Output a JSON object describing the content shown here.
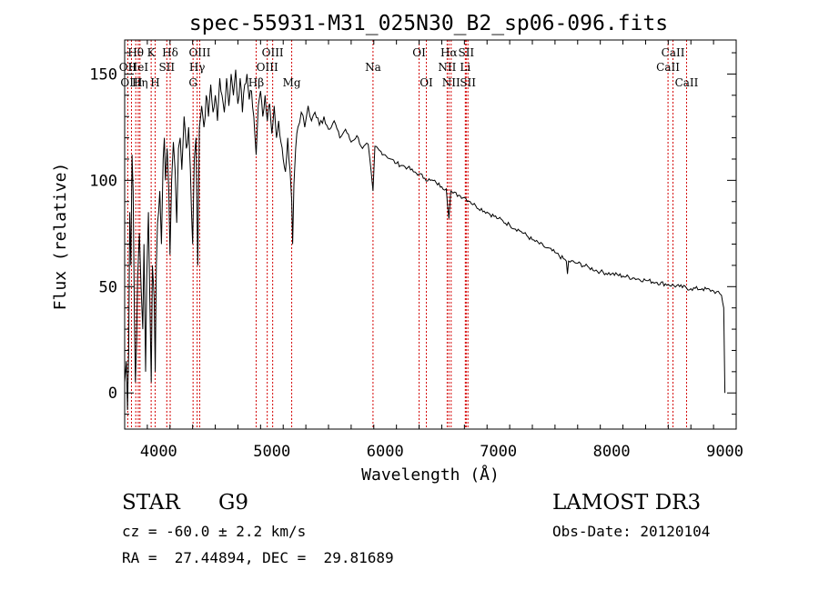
{
  "chart_data": {
    "type": "line",
    "title": "spec-55931-M31_025N30_B2_sp06-096.fits",
    "xlabel": "Wavelength (Å)",
    "ylabel": "Flux (relative)",
    "xlim": [
      3700,
      9100
    ],
    "ylim": [
      -17,
      166
    ],
    "xticks": [
      4000,
      5000,
      6000,
      7000,
      8000,
      9000
    ],
    "yticks": [
      0,
      50,
      100,
      150
    ],
    "grid": false,
    "line_color": "#000000",
    "marker_color": "#d40000",
    "series": [
      {
        "name": "spectrum",
        "points": [
          [
            3700,
            5
          ],
          [
            3715,
            15
          ],
          [
            3725,
            -8
          ],
          [
            3735,
            20
          ],
          [
            3745,
            85
          ],
          [
            3755,
            60
          ],
          [
            3765,
            112
          ],
          [
            3775,
            95
          ],
          [
            3785,
            40
          ],
          [
            3795,
            5
          ],
          [
            3805,
            25
          ],
          [
            3815,
            55
          ],
          [
            3830,
            75
          ],
          [
            3845,
            50
          ],
          [
            3860,
            30
          ],
          [
            3870,
            70
          ],
          [
            3885,
            10
          ],
          [
            3895,
            55
          ],
          [
            3910,
            85
          ],
          [
            3920,
            50
          ],
          [
            3935,
            5
          ],
          [
            3945,
            60
          ],
          [
            3960,
            45
          ],
          [
            3970,
            10
          ],
          [
            3980,
            60
          ],
          [
            3990,
            80
          ],
          [
            4000,
            85
          ],
          [
            4010,
            95
          ],
          [
            4025,
            70
          ],
          [
            4040,
            110
          ],
          [
            4050,
            120
          ],
          [
            4060,
            100
          ],
          [
            4075,
            115
          ],
          [
            4090,
            95
          ],
          [
            4100,
            65
          ],
          [
            4115,
            100
          ],
          [
            4130,
            118
          ],
          [
            4145,
            105
          ],
          [
            4160,
            80
          ],
          [
            4175,
            115
          ],
          [
            4190,
            120
          ],
          [
            4205,
            105
          ],
          [
            4225,
            130
          ],
          [
            4245,
            115
          ],
          [
            4265,
            125
          ],
          [
            4280,
            105
          ],
          [
            4300,
            70
          ],
          [
            4315,
            110
          ],
          [
            4330,
            120
          ],
          [
            4345,
            60
          ],
          [
            4360,
            125
          ],
          [
            4380,
            135
          ],
          [
            4400,
            125
          ],
          [
            4420,
            140
          ],
          [
            4440,
            130
          ],
          [
            4460,
            145
          ],
          [
            4480,
            132
          ],
          [
            4500,
            140
          ],
          [
            4520,
            128
          ],
          [
            4540,
            148
          ],
          [
            4560,
            140
          ],
          [
            4580,
            132
          ],
          [
            4600,
            148
          ],
          [
            4620,
            135
          ],
          [
            4640,
            150
          ],
          [
            4660,
            140
          ],
          [
            4680,
            152
          ],
          [
            4700,
            136
          ],
          [
            4720,
            148
          ],
          [
            4740,
            132
          ],
          [
            4760,
            145
          ],
          [
            4780,
            150
          ],
          [
            4800,
            138
          ],
          [
            4820,
            142
          ],
          [
            4840,
            130
          ],
          [
            4861,
            112
          ],
          [
            4880,
            135
          ],
          [
            4900,
            142
          ],
          [
            4920,
            130
          ],
          [
            4940,
            140
          ],
          [
            4960,
            128
          ],
          [
            4980,
            136
          ],
          [
            5000,
            122
          ],
          [
            5020,
            135
          ],
          [
            5040,
            120
          ],
          [
            5060,
            128
          ],
          [
            5080,
            118
          ],
          [
            5100,
            110
          ],
          [
            5120,
            104
          ],
          [
            5140,
            120
          ],
          [
            5160,
            105
          ],
          [
            5175,
            90
          ],
          [
            5183,
            70
          ],
          [
            5195,
            98
          ],
          [
            5210,
            115
          ],
          [
            5230,
            125
          ],
          [
            5260,
            132
          ],
          [
            5290,
            125
          ],
          [
            5320,
            135
          ],
          [
            5350,
            128
          ],
          [
            5380,
            132
          ],
          [
            5420,
            126
          ],
          [
            5460,
            130
          ],
          [
            5500,
            124
          ],
          [
            5550,
            128
          ],
          [
            5600,
            120
          ],
          [
            5650,
            124
          ],
          [
            5700,
            118
          ],
          [
            5750,
            121
          ],
          [
            5800,
            115
          ],
          [
            5850,
            117
          ],
          [
            5893,
            95
          ],
          [
            5910,
            116
          ],
          [
            5950,
            114
          ],
          [
            6000,
            112
          ],
          [
            6050,
            110
          ],
          [
            6100,
            108
          ],
          [
            6150,
            107
          ],
          [
            6200,
            106
          ],
          [
            6250,
            104
          ],
          [
            6300,
            103
          ],
          [
            6350,
            101
          ],
          [
            6400,
            100
          ],
          [
            6450,
            99
          ],
          [
            6500,
            97
          ],
          [
            6540,
            96
          ],
          [
            6563,
            82
          ],
          [
            6580,
            95
          ],
          [
            6600,
            94
          ],
          [
            6650,
            93
          ],
          [
            6700,
            92
          ],
          [
            6750,
            90
          ],
          [
            6800,
            88
          ],
          [
            6900,
            85
          ],
          [
            7000,
            82
          ],
          [
            7100,
            79
          ],
          [
            7200,
            76
          ],
          [
            7300,
            72
          ],
          [
            7400,
            69
          ],
          [
            7500,
            66
          ],
          [
            7600,
            62
          ],
          [
            7610,
            56
          ],
          [
            7620,
            62
          ],
          [
            7700,
            61
          ],
          [
            7800,
            59
          ],
          [
            7900,
            57
          ],
          [
            8000,
            56
          ],
          [
            8100,
            55
          ],
          [
            8200,
            54
          ],
          [
            8300,
            53
          ],
          [
            8400,
            52
          ],
          [
            8500,
            51
          ],
          [
            8600,
            50
          ],
          [
            8700,
            49
          ],
          [
            8800,
            49
          ],
          [
            8900,
            48
          ],
          [
            8970,
            46
          ],
          [
            8990,
            40
          ],
          [
            9000,
            0
          ]
        ]
      }
    ],
    "line_markers": [
      {
        "label": "Hθ",
        "wavelength": 3798,
        "row": 1
      },
      {
        "label": "OII",
        "wavelength": 3727,
        "row": 2
      },
      {
        "label": "HeI",
        "wavelength": 3820,
        "row": 2
      },
      {
        "label": "OIII",
        "wavelength": 3760,
        "row": 3
      },
      {
        "label": "Hη",
        "wavelength": 3835,
        "row": 3
      },
      {
        "label": "K",
        "wavelength": 3934,
        "row": 1
      },
      {
        "label": "SII",
        "wavelength": 4072,
        "row": 2
      },
      {
        "label": "H",
        "wavelength": 3969,
        "row": 3
      },
      {
        "label": "Hδ",
        "wavelength": 4102,
        "row": 1
      },
      {
        "label": "OIII",
        "wavelength": 4363,
        "row": 1
      },
      {
        "label": "Hγ",
        "wavelength": 4340,
        "row": 2
      },
      {
        "label": "G",
        "wavelength": 4304,
        "row": 3
      },
      {
        "label": "Hβ",
        "wavelength": 4861,
        "row": 3
      },
      {
        "label": "OIII",
        "wavelength": 5007,
        "row": 1
      },
      {
        "label": "OIII",
        "wavelength": 4959,
        "row": 2
      },
      {
        "label": "Mg",
        "wavelength": 5175,
        "row": 3
      },
      {
        "label": "Na",
        "wavelength": 5893,
        "row": 2
      },
      {
        "label": "OI",
        "wavelength": 6300,
        "row": 1
      },
      {
        "label": "OI",
        "wavelength": 6364,
        "row": 3
      },
      {
        "label": "Hα",
        "wavelength": 6563,
        "row": 1
      },
      {
        "label": "NII",
        "wavelength": 6548,
        "row": 2
      },
      {
        "label": "NII",
        "wavelength": 6583,
        "row": 3
      },
      {
        "label": "SII",
        "wavelength": 6716,
        "row": 1
      },
      {
        "label": "Li",
        "wavelength": 6708,
        "row": 2
      },
      {
        "label": "SII",
        "wavelength": 6731,
        "row": 3
      },
      {
        "label": "CaII",
        "wavelength": 8542,
        "row": 1
      },
      {
        "label": "CaII",
        "wavelength": 8498,
        "row": 2
      },
      {
        "label": "CaII",
        "wavelength": 8662,
        "row": 3
      }
    ]
  },
  "info": {
    "object_class": "STAR",
    "subclass": "G9",
    "survey": "LAMOST DR3",
    "cz": "cz = -60.0 ± 2.2 km/s",
    "obs_date": "Obs-Date: 20120104",
    "coords": "RA =  27.44894, DEC =  29.81689"
  }
}
